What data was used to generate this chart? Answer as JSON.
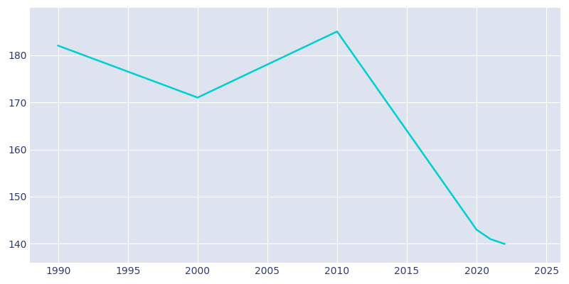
{
  "years": [
    1990,
    2000,
    2010,
    2020,
    2021,
    2022
  ],
  "population": [
    182,
    171,
    185,
    143,
    141,
    140
  ],
  "line_color": "#00CED1",
  "fig_bg_color": "#FFFFFF",
  "plot_bg_color": "#DDE4EF",
  "xlim": [
    1988,
    2026
  ],
  "ylim": [
    136,
    190
  ],
  "xticks": [
    1990,
    1995,
    2000,
    2005,
    2010,
    2015,
    2020,
    2025
  ],
  "yticks": [
    140,
    150,
    160,
    170,
    180
  ],
  "tick_label_color": "#2E3A6E",
  "grid_color": "#FFFFFF",
  "linewidth": 1.8
}
